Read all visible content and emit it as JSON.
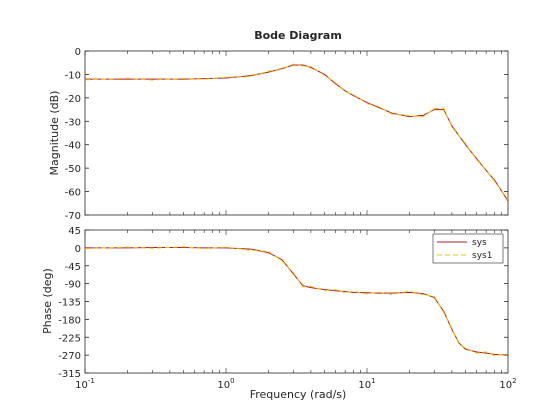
{
  "chart_data": {
    "type": "line",
    "title": "Bode Diagram",
    "xlabel": "Frequency  (rad/s)",
    "x_scale": "log",
    "xlim": [
      0.1,
      100
    ],
    "x_ticks": [
      {
        "value": 0.1,
        "base": "10",
        "exp": "-1"
      },
      {
        "value": 1,
        "base": "10",
        "exp": "0"
      },
      {
        "value": 10,
        "base": "10",
        "exp": "1"
      },
      {
        "value": 100,
        "base": "10",
        "exp": "2"
      }
    ],
    "legend": {
      "placement": "top-right",
      "entries": [
        "sys",
        "sys1"
      ]
    },
    "series_colors": {
      "sys": "#b2182b",
      "sys1": "#e6c800"
    },
    "panels": [
      {
        "id": "magnitude",
        "ylabel": "Magnitude (dB)",
        "ylim": [
          -70,
          0
        ],
        "y_ticks": [
          0,
          -10,
          -20,
          -30,
          -40,
          -50,
          -60,
          -70
        ],
        "x": [
          0.1,
          0.2,
          0.3,
          0.5,
          0.7,
          1,
          1.5,
          2,
          2.5,
          3,
          3.5,
          4,
          5,
          6,
          7,
          8,
          10,
          12,
          15,
          20,
          25,
          30,
          35,
          40,
          50,
          60,
          70,
          80,
          100
        ],
        "series": [
          {
            "name": "sys",
            "values": [
              -12,
              -12,
              -12,
              -12,
              -11.8,
              -11.5,
              -10.5,
              -9,
              -7.5,
              -6,
              -6,
              -7,
              -10,
              -14,
              -17,
              -19,
              -22,
              -24,
              -26.5,
              -28,
              -27.5,
              -25,
              -25,
              -32,
              -40,
              -46,
              -51,
              -55,
              -64
            ]
          },
          {
            "name": "sys1",
            "values": [
              -12.3,
              -11.6,
              -12.4,
              -11.7,
              -12.1,
              -11.2,
              -10.9,
              -8.6,
              -7.9,
              -5.6,
              -6.4,
              -6.6,
              -10.4,
              -13.6,
              -17.4,
              -18.6,
              -22.5,
              -23.6,
              -26.9,
              -27.6,
              -28.1,
              -24.6,
              -24.4,
              -32.5,
              -39.5,
              -46.5,
              -50.6,
              -55.5,
              -63.5
            ]
          }
        ]
      },
      {
        "id": "phase",
        "ylabel": "Phase (deg)",
        "ylim": [
          -315,
          45
        ],
        "y_ticks": [
          45,
          0,
          -45,
          -90,
          -135,
          -180,
          -225,
          -270,
          -315
        ],
        "x": [
          0.1,
          0.2,
          0.3,
          0.5,
          0.7,
          1,
          1.5,
          2,
          2.5,
          3,
          3.5,
          4,
          5,
          6,
          7,
          8,
          10,
          12,
          15,
          20,
          25,
          30,
          35,
          40,
          45,
          50,
          60,
          70,
          80,
          100
        ],
        "series": [
          {
            "name": "sys",
            "values": [
              0,
              0,
              1,
              1,
              0,
              0,
              -3,
              -12,
              -30,
              -65,
              -95,
              -100,
              -105,
              -108,
              -110,
              -112,
              -113,
              -114,
              -114,
              -112,
              -115,
              -125,
              -160,
              -205,
              -240,
              -255,
              -262,
              -265,
              -268,
              -270
            ]
          },
          {
            "name": "sys1",
            "values": [
              -2,
              2,
              -1,
              3,
              -2,
              2,
              -6,
              -9,
              -33,
              -62,
              -98,
              -97,
              -108,
              -105,
              -113,
              -109,
              -116,
              -111,
              -117,
              -109,
              -118,
              -122,
              -163,
              -202,
              -243,
              -252,
              -265,
              -262,
              -271,
              -267
            ]
          }
        ]
      }
    ]
  }
}
